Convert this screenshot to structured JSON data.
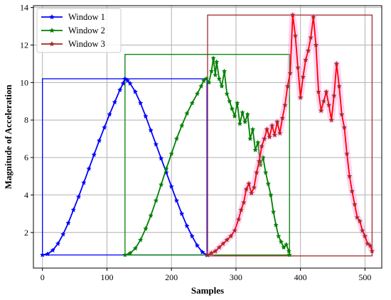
{
  "chart_data": {
    "type": "line",
    "xlabel": "Samples",
    "ylabel": "Magnitude of Acceleration",
    "xlim": [
      -14,
      526
    ],
    "ylim": [
      0.1,
      14.1
    ],
    "xticks": [
      0,
      100,
      200,
      300,
      400,
      500
    ],
    "yticks": [
      2,
      4,
      6,
      8,
      10,
      12,
      14
    ],
    "grid": true,
    "legend": "top-left",
    "series": [
      {
        "name": "Window 1",
        "color": "#0000ff",
        "marker": "star",
        "window": {
          "x0": 0,
          "x1": 255,
          "y0": 0.8,
          "y1": 10.2
        },
        "points": [
          [
            0,
            0.8
          ],
          [
            8,
            0.85
          ],
          [
            16,
            1.05
          ],
          [
            24,
            1.4
          ],
          [
            32,
            1.9
          ],
          [
            40,
            2.5
          ],
          [
            48,
            3.2
          ],
          [
            56,
            3.9
          ],
          [
            64,
            4.65
          ],
          [
            72,
            5.4
          ],
          [
            80,
            6.15
          ],
          [
            88,
            6.9
          ],
          [
            96,
            7.6
          ],
          [
            104,
            8.3
          ],
          [
            112,
            8.95
          ],
          [
            120,
            9.6
          ],
          [
            125,
            9.95
          ],
          [
            128,
            10.2
          ],
          [
            132,
            10.1
          ],
          [
            136,
            9.95
          ],
          [
            144,
            9.5
          ],
          [
            152,
            8.9
          ],
          [
            160,
            8.2
          ],
          [
            168,
            7.45
          ],
          [
            176,
            6.7
          ],
          [
            184,
            5.95
          ],
          [
            192,
            5.2
          ],
          [
            200,
            4.45
          ],
          [
            208,
            3.7
          ],
          [
            216,
            3.0
          ],
          [
            224,
            2.35
          ],
          [
            232,
            1.8
          ],
          [
            240,
            1.3
          ],
          [
            248,
            0.95
          ],
          [
            255,
            0.8
          ]
        ]
      },
      {
        "name": "Window 2",
        "color": "#008000",
        "marker": "star",
        "window": {
          "x0": 128,
          "x1": 383,
          "y0": 0.8,
          "y1": 11.5
        },
        "points": [
          [
            128,
            0.8
          ],
          [
            136,
            0.9
          ],
          [
            144,
            1.15
          ],
          [
            152,
            1.6
          ],
          [
            160,
            2.2
          ],
          [
            168,
            2.9
          ],
          [
            176,
            3.7
          ],
          [
            184,
            4.55
          ],
          [
            192,
            5.4
          ],
          [
            200,
            6.2
          ],
          [
            208,
            7.0
          ],
          [
            216,
            7.7
          ],
          [
            224,
            8.35
          ],
          [
            232,
            8.9
          ],
          [
            240,
            9.4
          ],
          [
            246,
            9.8
          ],
          [
            250,
            10.1
          ],
          [
            254,
            10.2
          ],
          [
            258,
            10.0
          ],
          [
            262,
            10.6
          ],
          [
            265,
            11.3
          ],
          [
            268,
            10.4
          ],
          [
            270,
            11.1
          ],
          [
            274,
            10.2
          ],
          [
            278,
            9.8
          ],
          [
            282,
            10.6
          ],
          [
            286,
            9.4
          ],
          [
            290,
            9.0
          ],
          [
            294,
            8.6
          ],
          [
            298,
            8.2
          ],
          [
            302,
            8.9
          ],
          [
            306,
            7.8
          ],
          [
            310,
            8.4
          ],
          [
            314,
            7.9
          ],
          [
            318,
            8.3
          ],
          [
            322,
            7.0
          ],
          [
            326,
            7.5
          ],
          [
            330,
            6.4
          ],
          [
            334,
            6.8
          ],
          [
            338,
            5.6
          ],
          [
            342,
            6.0
          ],
          [
            346,
            5.2
          ],
          [
            350,
            4.6
          ],
          [
            354,
            4.0
          ],
          [
            358,
            3.1
          ],
          [
            362,
            2.4
          ],
          [
            366,
            1.8
          ],
          [
            370,
            1.5
          ],
          [
            374,
            1.2
          ],
          [
            378,
            1.35
          ],
          [
            382,
            1.0
          ],
          [
            383,
            0.8
          ]
        ]
      },
      {
        "name": "Window 3",
        "color": "#a52a2a",
        "marker": "star",
        "window": {
          "x0": 256,
          "x1": 511,
          "y0": 0.75,
          "y1": 13.6
        },
        "points": [
          [
            256,
            0.8
          ],
          [
            262,
            0.9
          ],
          [
            268,
            1.0
          ],
          [
            274,
            1.2
          ],
          [
            280,
            1.4
          ],
          [
            286,
            1.6
          ],
          [
            292,
            1.8
          ],
          [
            298,
            2.1
          ],
          [
            304,
            2.7
          ],
          [
            308,
            3.2
          ],
          [
            312,
            3.6
          ],
          [
            316,
            4.3
          ],
          [
            320,
            4.6
          ],
          [
            324,
            4.1
          ],
          [
            328,
            4.4
          ],
          [
            332,
            5.2
          ],
          [
            336,
            5.8
          ],
          [
            340,
            6.6
          ],
          [
            344,
            7.0
          ],
          [
            348,
            7.5
          ],
          [
            352,
            7.1
          ],
          [
            356,
            7.7
          ],
          [
            360,
            7.2
          ],
          [
            364,
            7.9
          ],
          [
            368,
            7.3
          ],
          [
            372,
            8.1
          ],
          [
            376,
            8.8
          ],
          [
            380,
            9.8
          ],
          [
            384,
            10.5
          ],
          [
            388,
            13.6
          ],
          [
            392,
            12.5
          ],
          [
            396,
            10.8
          ],
          [
            400,
            9.2
          ],
          [
            404,
            10.3
          ],
          [
            408,
            11.2
          ],
          [
            412,
            11.7
          ],
          [
            416,
            12.4
          ],
          [
            420,
            13.5
          ],
          [
            424,
            12.0
          ],
          [
            428,
            9.5
          ],
          [
            432,
            8.5
          ],
          [
            436,
            9.0
          ],
          [
            440,
            9.5
          ],
          [
            444,
            8.8
          ],
          [
            448,
            8.0
          ],
          [
            452,
            9.3
          ],
          [
            456,
            11.0
          ],
          [
            460,
            9.8
          ],
          [
            464,
            8.3
          ],
          [
            468,
            7.6
          ],
          [
            472,
            6.2
          ],
          [
            476,
            5.0
          ],
          [
            480,
            4.2
          ],
          [
            484,
            3.5
          ],
          [
            488,
            2.8
          ],
          [
            492,
            2.6
          ],
          [
            496,
            2.1
          ],
          [
            500,
            1.8
          ],
          [
            504,
            1.4
          ],
          [
            508,
            1.3
          ],
          [
            511,
            1.0
          ]
        ]
      }
    ]
  }
}
